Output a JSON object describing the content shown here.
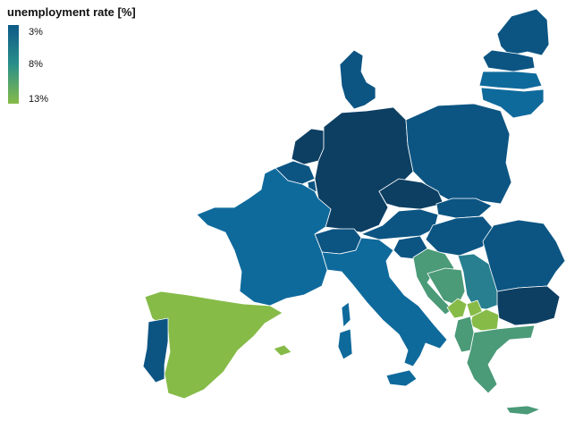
{
  "legend": {
    "title": "unemployment rate [%]",
    "ticks": [
      "3%",
      "8%",
      "13%"
    ],
    "tick_values": [
      3,
      8,
      13
    ],
    "scale_colors": [
      "#0d5a87",
      "#2a8f8a",
      "#86bb48"
    ]
  },
  "palette": {
    "dark_navy": "#0d3f63",
    "deep_blue": "#0c5583",
    "blue": "#0f6a9c",
    "teal": "#277f90",
    "sea_green": "#4b9a78",
    "light_green": "#86bb48"
  }
}
